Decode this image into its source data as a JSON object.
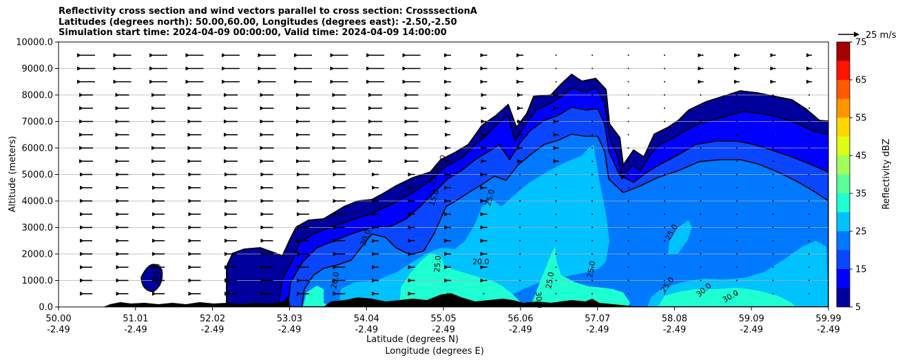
{
  "title_lines": [
    "Reflectivity cross section and wind vectors parallel to cross section: CrosssectionA",
    "Latitudes (degrees north): 50.00,60.00, Longitudes (degrees east): -2.50,-2.50",
    "Simulation start time: 2024-04-09 00:00:00, Valid time: 2024-04-09 14:00:00"
  ],
  "chart_data": {
    "type": "heatmap",
    "title": "Reflectivity cross section and wind vectors parallel to cross section: CrosssectionA",
    "ylabel": "Altitude (meters)",
    "xlabel_lines": [
      "Latitude (degrees N)",
      "Longitude (degrees E)"
    ],
    "ylim": [
      0,
      10000
    ],
    "y_ticks": [
      "0.0",
      "1000.0",
      "2000.0",
      "3000.0",
      "4000.0",
      "5000.0",
      "6000.0",
      "7000.0",
      "8000.0",
      "9000.0",
      "10000.0"
    ],
    "x_ticks_lat": [
      "50.00",
      "51.01",
      "52.02",
      "53.03",
      "54.04",
      "55.05",
      "56.06",
      "57.07",
      "58.08",
      "59.09",
      "59.99"
    ],
    "x_ticks_lon": [
      "-2.49",
      "-2.49",
      "-2.49",
      "-2.49",
      "-2.49",
      "-2.49",
      "-2.49",
      "-2.49",
      "-2.49",
      "-2.49",
      "-2.49"
    ],
    "grid": "horizontal",
    "colorbar": {
      "label": "Reflectivity dBZ",
      "levels": [
        5,
        10,
        15,
        20,
        25,
        30,
        35,
        40,
        45,
        50,
        55,
        60,
        65,
        70,
        75
      ],
      "tick_labels": [
        "5",
        "15",
        "25",
        "35",
        "45",
        "55",
        "65",
        "75"
      ],
      "colors": [
        "#00009c",
        "#0000ff",
        "#0a46ff",
        "#0078ff",
        "#00c2ff",
        "#1effd2",
        "#5aff9a",
        "#a0ff5a",
        "#dcff14",
        "#ffd700",
        "#ff9600",
        "#ff5a00",
        "#ff1400",
        "#a50000"
      ]
    },
    "quiver_key": {
      "label": "25 m/s",
      "value": 25
    },
    "contour_labels": [
      "15.0",
      "20.0",
      "25.0",
      "30.0"
    ],
    "ground_color": "#000000",
    "wind_arrow_color": "#000000"
  }
}
